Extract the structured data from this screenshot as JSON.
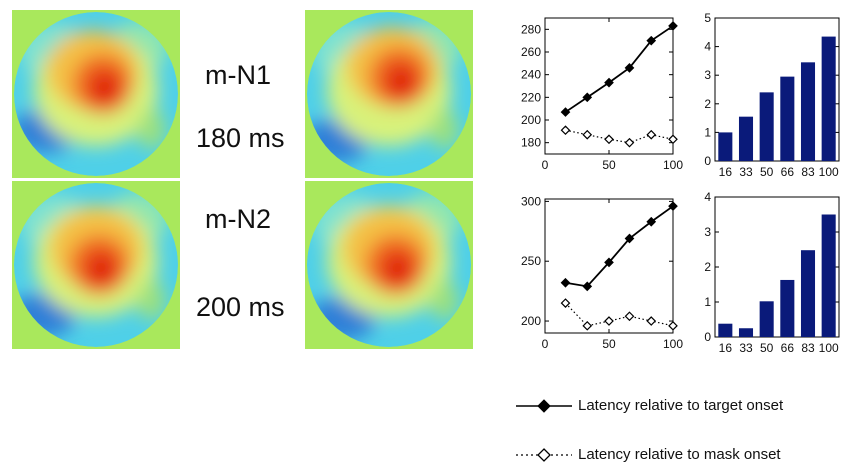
{
  "panels": {
    "n1_name": "m-N1",
    "n1_time": "180 ms",
    "n2_name": "m-N2",
    "n2_time": "200 ms"
  },
  "colors": {
    "map_bg": "#a9e85c",
    "bar": "#0a1a7a",
    "line": "#000000"
  },
  "legend": {
    "target": "Latency relative to target onset",
    "mask": "Latency relative to mask onset"
  },
  "chart_data": [
    {
      "type": "line",
      "x": [
        16,
        33,
        50,
        66,
        83,
        100
      ],
      "xlim": [
        0,
        100
      ],
      "xticks": [
        0,
        50,
        100
      ],
      "ylim": [
        170,
        290
      ],
      "yticks": [
        180,
        200,
        220,
        240,
        260,
        280
      ],
      "series": [
        {
          "name": "Latency relative to target onset",
          "marker": "filled-diamond",
          "style": "solid",
          "values": [
            207,
            220,
            233,
            246,
            270,
            283
          ]
        },
        {
          "name": "Latency relative to mask onset",
          "marker": "open-diamond",
          "style": "dotted",
          "values": [
            191,
            187,
            183,
            180,
            187,
            183
          ]
        }
      ]
    },
    {
      "type": "bar",
      "categories": [
        "16",
        "33",
        "50",
        "66",
        "83",
        "100"
      ],
      "values": [
        1.0,
        1.55,
        2.4,
        2.95,
        3.45,
        4.35
      ],
      "ylim": [
        0,
        5
      ],
      "yticks": [
        0,
        1,
        2,
        3,
        4,
        5
      ]
    },
    {
      "type": "line",
      "x": [
        16,
        33,
        50,
        66,
        83,
        100
      ],
      "xlim": [
        0,
        100
      ],
      "xticks": [
        0,
        50,
        100
      ],
      "ylim": [
        190,
        302
      ],
      "yticks": [
        200,
        250,
        300
      ],
      "series": [
        {
          "name": "Latency relative to target onset",
          "marker": "filled-diamond",
          "style": "solid",
          "values": [
            232,
            229,
            249,
            269,
            283,
            296
          ]
        },
        {
          "name": "Latency relative to mask onset",
          "marker": "open-diamond",
          "style": "dotted",
          "values": [
            215,
            196,
            200,
            204,
            200,
            196
          ]
        }
      ]
    },
    {
      "type": "bar",
      "categories": [
        "16",
        "33",
        "50",
        "66",
        "83",
        "100"
      ],
      "values": [
        0.38,
        0.25,
        1.02,
        1.63,
        2.48,
        3.5
      ],
      "ylim": [
        0,
        4
      ],
      "yticks": [
        0,
        1,
        2,
        3,
        4
      ]
    }
  ]
}
